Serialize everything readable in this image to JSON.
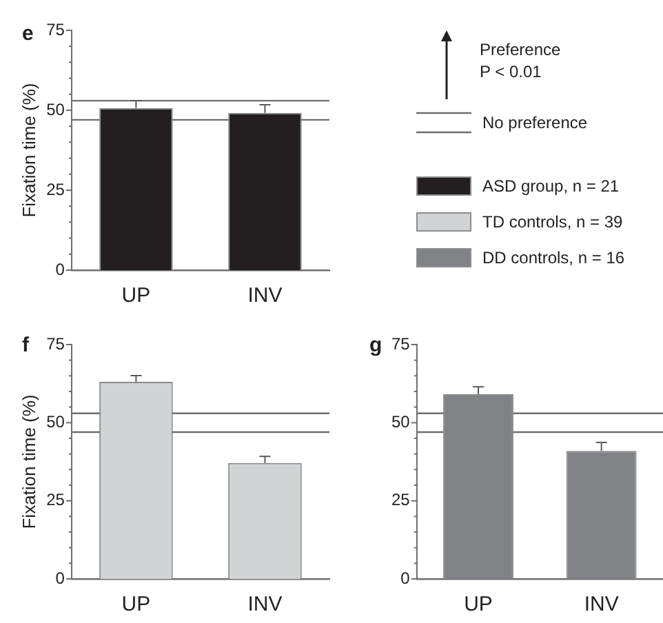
{
  "chart_data": [
    {
      "type": "bar",
      "title": "e",
      "ylabel": "Fixation time (%)",
      "categories": [
        "UP",
        "INV"
      ],
      "series": [
        {
          "name": "ASD group, n = 21",
          "color": "#231f20",
          "values": [
            50.7,
            49.2
          ],
          "errors": [
            2.3,
            2.5
          ]
        }
      ],
      "ylim": [
        0,
        75
      ],
      "yticks": [
        0,
        {
          "value": 5,
          "label": null
        },
        {
          "value": 10,
          "label": null
        },
        {
          "value": 15,
          "label": null
        },
        {
          "value": 20,
          "label": null
        },
        25,
        {
          "value": 30,
          "label": null
        },
        {
          "value": 35,
          "label": null
        },
        {
          "value": 40,
          "label": null
        },
        {
          "value": 45,
          "label": null
        },
        50,
        {
          "value": 55,
          "label": null
        },
        {
          "value": 60,
          "label": null
        },
        {
          "value": 65,
          "label": null
        },
        {
          "value": 70,
          "label": null
        },
        75
      ],
      "ref_lines": [
        {
          "axis": "y",
          "value": 53,
          "label": "No preference"
        },
        {
          "axis": "y",
          "value": 47
        }
      ],
      "annotations": [
        "Preference",
        "P < 0.01"
      ],
      "legend": "right"
    },
    {
      "type": "bar",
      "title": "f",
      "ylabel": "Fixation time (%)",
      "categories": [
        "UP",
        "INV"
      ],
      "series": [
        {
          "name": "TD controls, n = 39",
          "color": "#d1d3d4",
          "values": [
            63.1,
            37.1
          ],
          "errors": [
            2.0,
            2.1
          ]
        }
      ],
      "ylim": [
        0,
        75
      ],
      "yticks": [
        0,
        {
          "value": 5,
          "label": null
        },
        {
          "value": 10,
          "label": null
        },
        {
          "value": 15,
          "label": null
        },
        {
          "value": 20,
          "label": null
        },
        25,
        {
          "value": 30,
          "label": null
        },
        {
          "value": 35,
          "label": null
        },
        {
          "value": 40,
          "label": null
        },
        {
          "value": 45,
          "label": null
        },
        50,
        {
          "value": 55,
          "label": null
        },
        {
          "value": 60,
          "label": null
        },
        {
          "value": 65,
          "label": null
        },
        {
          "value": 70,
          "label": null
        },
        75
      ],
      "ref_lines": [
        {
          "axis": "y",
          "value": 53
        },
        {
          "axis": "y",
          "value": 47
        }
      ]
    },
    {
      "type": "bar",
      "title": "g",
      "categories": [
        "UP",
        "INV"
      ],
      "series": [
        {
          "name": "DD controls, n = 16",
          "color": "#808285",
          "values": [
            59.1,
            41.0
          ],
          "errors": [
            2.4,
            2.7
          ]
        }
      ],
      "ylim": [
        0,
        75
      ],
      "yticks": [
        0,
        {
          "value": 5,
          "label": null
        },
        {
          "value": 10,
          "label": null
        },
        {
          "value": 15,
          "label": null
        },
        {
          "value": 20,
          "label": null
        },
        25,
        {
          "value": 30,
          "label": null
        },
        {
          "value": 35,
          "label": null
        },
        {
          "value": 40,
          "label": null
        },
        {
          "value": 45,
          "label": null
        },
        50,
        {
          "value": 55,
          "label": null
        },
        {
          "value": 60,
          "label": null
        },
        {
          "value": 65,
          "label": null
        },
        {
          "value": 70,
          "label": null
        },
        75
      ],
      "ref_lines": [
        {
          "axis": "y",
          "value": 53
        },
        {
          "axis": "y",
          "value": 47
        }
      ]
    }
  ]
}
